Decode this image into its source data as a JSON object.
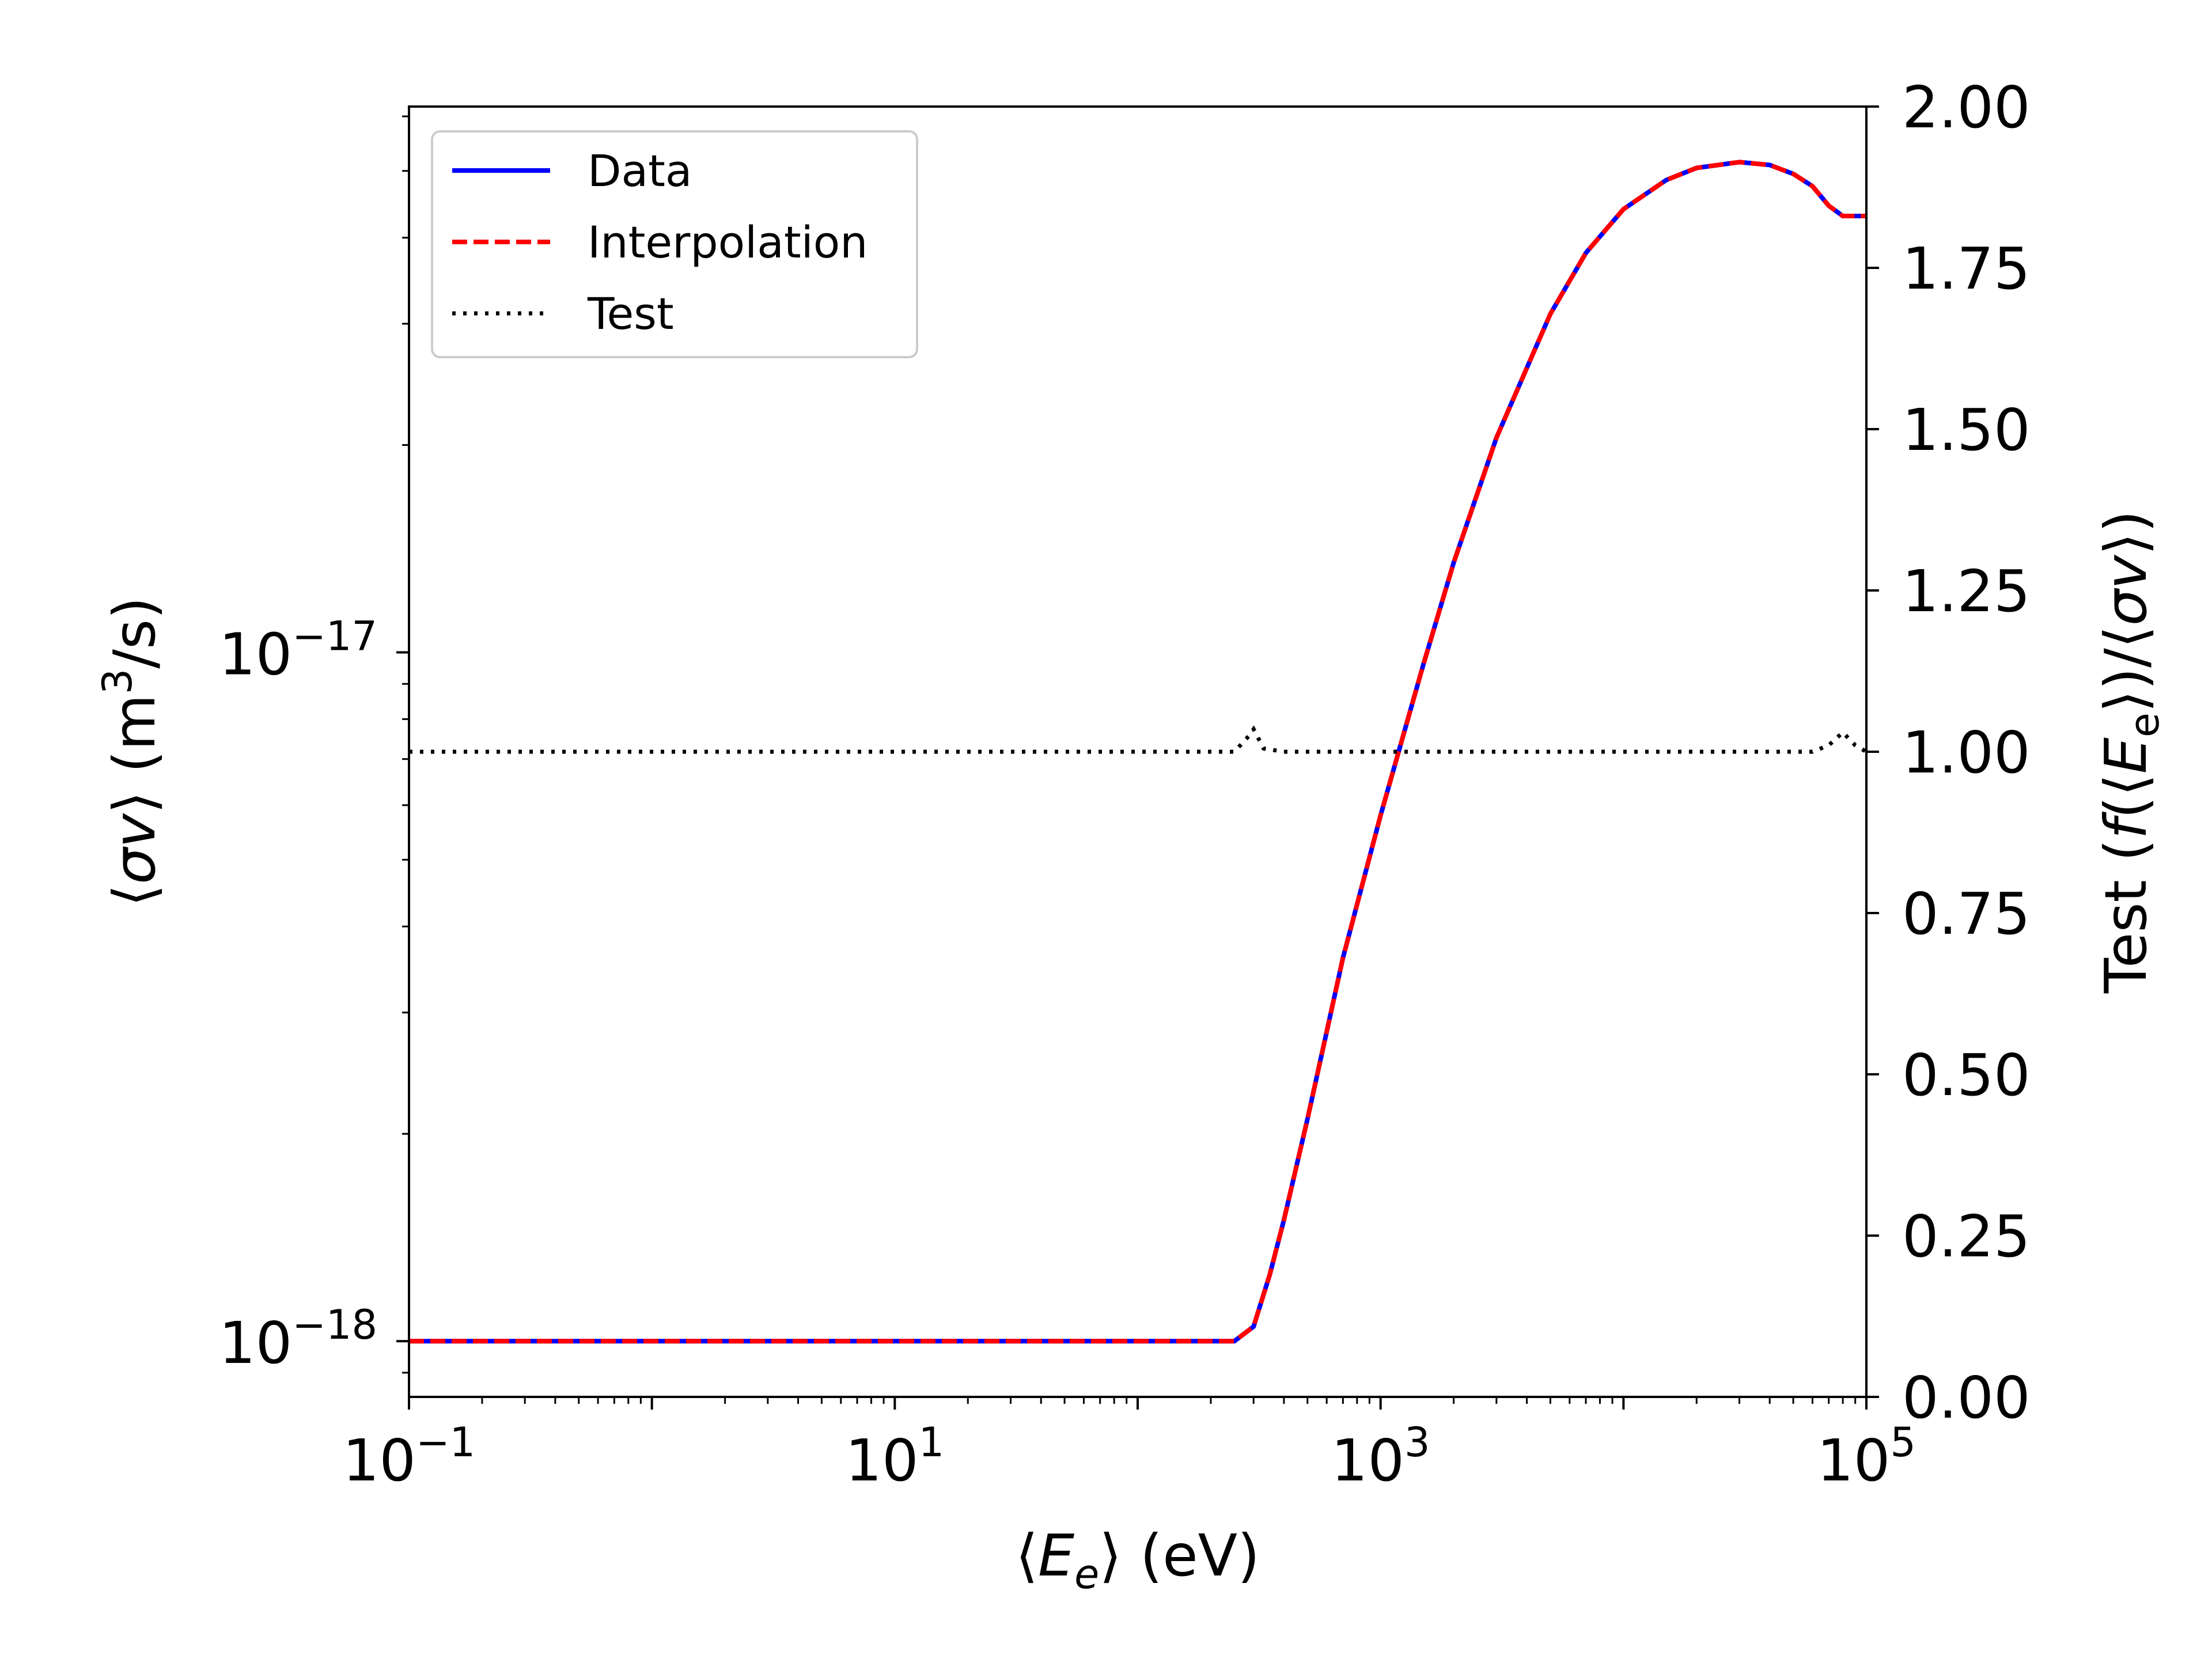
{
  "chart_data": {
    "type": "line",
    "xlabel": "⟨Ee⟩ (eV)",
    "ylabel": "⟨σv⟩ (m3/s)",
    "y2label": "Test (f(⟨Ee⟩)/⟨σv⟩)",
    "xscale": "log",
    "yscale": "log",
    "xlim": [
      0.1,
      100000
    ],
    "ylim": [
      8.3e-19,
      6.2e-17
    ],
    "y2lim": [
      0.0,
      2.0
    ],
    "x_ticks": [
      {
        "value": 0.1,
        "base": "10",
        "exp": "−1"
      },
      {
        "value": 10,
        "base": "10",
        "exp": "1"
      },
      {
        "value": 1000,
        "base": "10",
        "exp": "3"
      },
      {
        "value": 100000,
        "base": "10",
        "exp": "5"
      }
    ],
    "y_ticks": [
      {
        "value": 1e-18,
        "base": "10",
        "exp": "−18"
      },
      {
        "value": 1e-17,
        "base": "10",
        "exp": "−17"
      }
    ],
    "y2_ticks": [
      "0.00",
      "0.25",
      "0.50",
      "0.75",
      "1.00",
      "1.25",
      "1.50",
      "1.75",
      "2.00"
    ],
    "grid": false,
    "legend_position": "top-left",
    "series": [
      {
        "name": "Data",
        "axis": "left",
        "color": "#0000ff",
        "style": "solid",
        "x": [
          0.1,
          1,
          10,
          100,
          250,
          300,
          350,
          400,
          500,
          700,
          1000,
          1500,
          2000,
          3000,
          5000,
          7000,
          10000,
          15000,
          20000,
          30000,
          40000,
          50000,
          60000,
          70000,
          80000,
          100000
        ],
        "y": [
          1e-18,
          1e-18,
          1e-18,
          1e-18,
          1e-18,
          1.05e-18,
          1.25e-18,
          1.5e-18,
          2.1e-18,
          3.6e-18,
          5.8e-18,
          9.6e-18,
          1.35e-17,
          2.05e-17,
          3.1e-17,
          3.8e-17,
          4.4e-17,
          4.85e-17,
          5.05e-17,
          5.15e-17,
          5.1e-17,
          4.95e-17,
          4.75e-17,
          4.45e-17,
          4.3e-17,
          4.3e-17
        ]
      },
      {
        "name": "Interpolation",
        "axis": "left",
        "color": "#ff0000",
        "style": "dashed",
        "x": [
          0.1,
          1,
          10,
          100,
          250,
          300,
          350,
          400,
          500,
          700,
          1000,
          1500,
          2000,
          3000,
          5000,
          7000,
          10000,
          15000,
          20000,
          30000,
          40000,
          50000,
          60000,
          70000,
          80000,
          100000
        ],
        "y": [
          1e-18,
          1e-18,
          1e-18,
          1e-18,
          1e-18,
          1.05e-18,
          1.25e-18,
          1.5e-18,
          2.1e-18,
          3.6e-18,
          5.8e-18,
          9.6e-18,
          1.35e-17,
          2.05e-17,
          3.1e-17,
          3.8e-17,
          4.4e-17,
          4.85e-17,
          5.05e-17,
          5.15e-17,
          5.1e-17,
          4.95e-17,
          4.75e-17,
          4.45e-17,
          4.3e-17,
          4.3e-17
        ]
      },
      {
        "name": "Test",
        "axis": "right",
        "color": "#000000",
        "style": "dotted",
        "x": [
          0.1,
          1,
          10,
          100,
          250,
          280,
          300,
          330,
          400,
          1000,
          10000,
          50000,
          60000,
          70000,
          80000,
          90000,
          100000
        ],
        "y": [
          1.0,
          1.0,
          1.0,
          1.0,
          1.0,
          1.02,
          1.035,
          1.005,
          1.0,
          1.0,
          1.0,
          1.0,
          1.0,
          1.01,
          1.03,
          1.01,
          1.0
        ]
      }
    ]
  }
}
